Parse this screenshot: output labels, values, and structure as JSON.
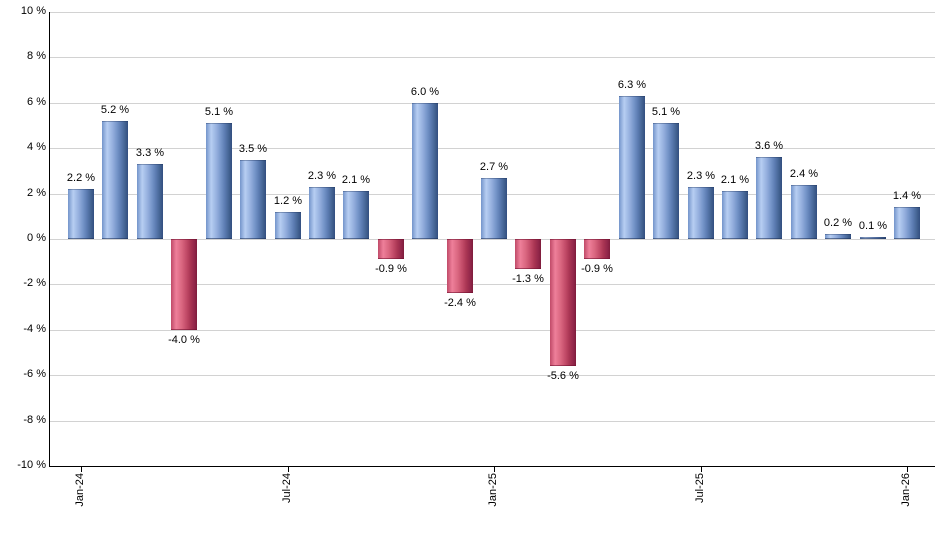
{
  "chart_data": {
    "type": "bar",
    "title": "",
    "xlabel": "",
    "ylabel": "",
    "unit_suffix": " %",
    "values": [
      2.2,
      5.2,
      3.3,
      -4.0,
      5.1,
      3.5,
      1.2,
      2.3,
      2.1,
      -0.9,
      6.0,
      -2.4,
      2.7,
      -1.3,
      -5.6,
      -0.9,
      6.3,
      5.1,
      2.3,
      2.1,
      3.6,
      2.4,
      0.2,
      0.1,
      1.4
    ],
    "bar_labels": [
      "2.2 %",
      "5.2 %",
      "3.3 %",
      "-4.0 %",
      "5.1 %",
      "3.5 %",
      "1.2 %",
      "2.3 %",
      "2.1 %",
      "-0.9 %",
      "6.0 %",
      "-2.4 %",
      "2.7 %",
      "-1.3 %",
      "-5.6 %",
      "-0.9 %",
      "6.3 %",
      "5.1 %",
      "2.3 %",
      "2.1 %",
      "3.6 %",
      "2.4 %",
      "0.2 %",
      "0.1 %",
      "1.4 %"
    ],
    "x_ticks": [
      {
        "index": 0,
        "label": "Jan-24"
      },
      {
        "index": 6,
        "label": "Jul-24"
      },
      {
        "index": 12,
        "label": "Jan-25"
      },
      {
        "index": 18,
        "label": "Jul-25"
      },
      {
        "index": 24,
        "label": "Jan-26"
      }
    ],
    "y_ticks": [
      {
        "value": 10,
        "label": "10 %"
      },
      {
        "value": 8,
        "label": "8 %"
      },
      {
        "value": 6,
        "label": "6 %"
      },
      {
        "value": 4,
        "label": "4 %"
      },
      {
        "value": 2,
        "label": "2 %"
      },
      {
        "value": 0,
        "label": "0 %"
      },
      {
        "value": -2,
        "label": "-2 %"
      },
      {
        "value": -4,
        "label": "-4 %"
      },
      {
        "value": -6,
        "label": "-6 %"
      },
      {
        "value": -8,
        "label": "-8 %"
      },
      {
        "value": -10,
        "label": "-10 %"
      }
    ],
    "ylim": [
      -10,
      10
    ],
    "grid": true,
    "legend": "none",
    "colors": {
      "positive_light": "#b7cef2",
      "positive_main": "#7394ca",
      "positive_dark": "#324e80",
      "negative_light": "#ee7f9a",
      "negative_main": "#c04a68",
      "negative_dark": "#7e1c3b",
      "gridline": "#d2d2d2",
      "axis": "#000000",
      "label_text": "#000000"
    }
  }
}
